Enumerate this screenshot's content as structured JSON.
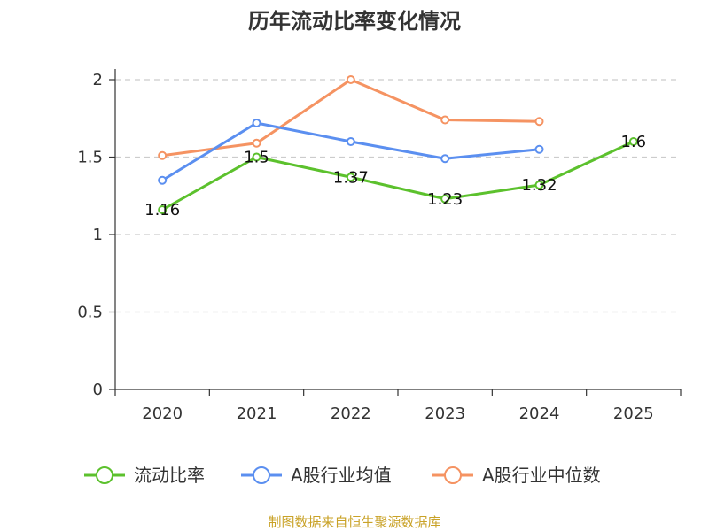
{
  "chart_data": {
    "type": "line",
    "title": "历年流动比率变化情况",
    "categories": [
      "2020",
      "2021",
      "2022",
      "2023",
      "2024",
      "2025"
    ],
    "y_ticks": [
      "0",
      "0.5",
      "1",
      "1.5",
      "2"
    ],
    "ylim": [
      0,
      2
    ],
    "grid": true,
    "legend_position": "bottom",
    "series": [
      {
        "name": "流动比率",
        "color": "#5cc12d",
        "values": [
          1.16,
          1.5,
          1.37,
          1.23,
          1.32,
          1.6
        ],
        "labels": [
          "1.16",
          "1.5",
          "1.37",
          "1.23",
          "1.32",
          "1.6"
        ]
      },
      {
        "name": "A股行业均值",
        "color": "#5b8ff0",
        "values": [
          1.35,
          1.72,
          1.6,
          1.49,
          1.55,
          null
        ]
      },
      {
        "name": "A股行业中位数",
        "color": "#f59362",
        "values": [
          1.51,
          1.59,
          2.0,
          1.74,
          1.73,
          null
        ]
      }
    ],
    "source": "制图数据来自恒生聚源数据库"
  }
}
